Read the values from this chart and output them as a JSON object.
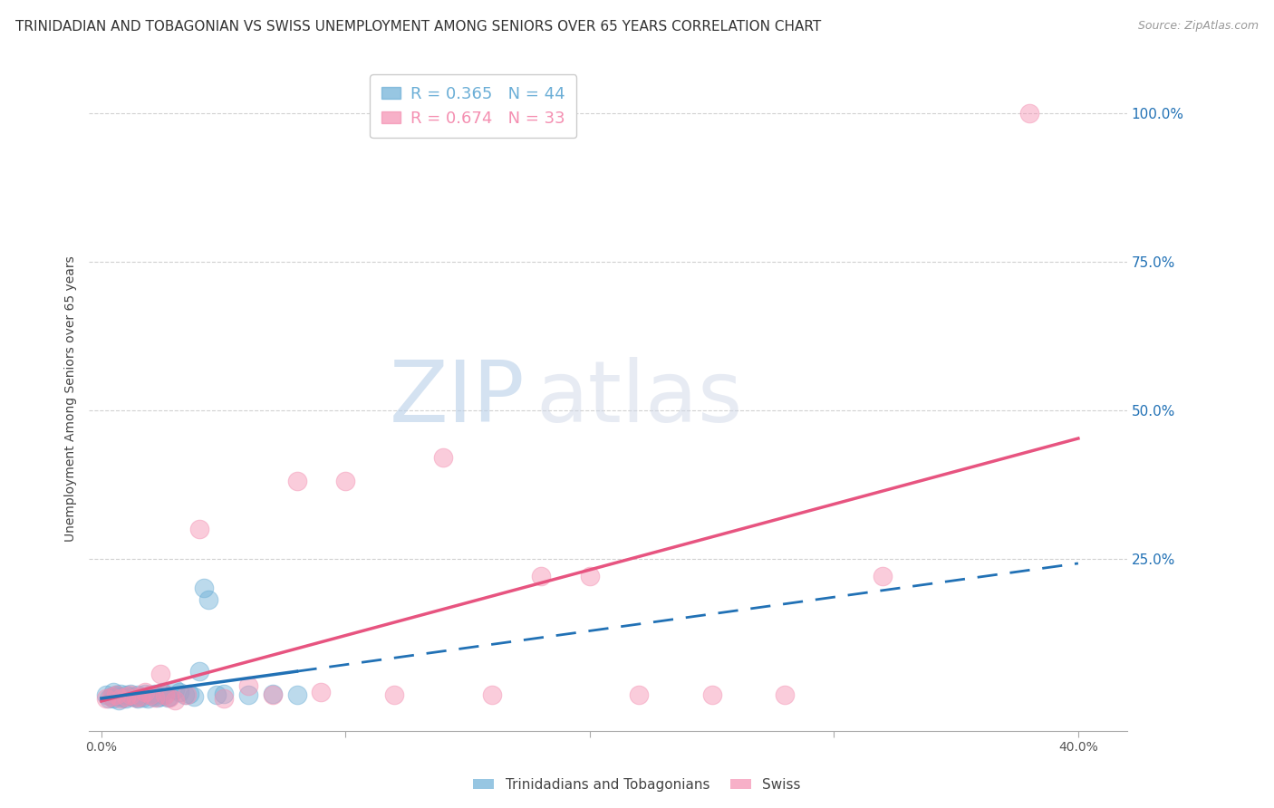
{
  "title": "TRINIDADIAN AND TOBAGONIAN VS SWISS UNEMPLOYMENT AMONG SENIORS OVER 65 YEARS CORRELATION CHART",
  "source": "Source: ZipAtlas.com",
  "ylabel": "Unemployment Among Seniors over 65 years",
  "ytick_labels": [
    "100.0%",
    "75.0%",
    "50.0%",
    "25.0%"
  ],
  "ytick_values": [
    1.0,
    0.75,
    0.5,
    0.25
  ],
  "xtick_positions": [
    0.0,
    0.1,
    0.2,
    0.3,
    0.4
  ],
  "xtick_labels": [
    "0.0%",
    "",
    "",
    "",
    "40.0%"
  ],
  "xlim": [
    -0.005,
    0.42
  ],
  "ylim": [
    -0.04,
    1.08
  ],
  "legend_items": [
    {
      "label": "R = 0.365   N = 44",
      "color": "#6baed6"
    },
    {
      "label": "R = 0.674   N = 33",
      "color": "#f48fb1"
    }
  ],
  "legend_labels_bottom": [
    "Trinidadians and Tobagonians",
    "Swiss"
  ],
  "legend_colors_bottom": [
    "#6baed6",
    "#f48fb1"
  ],
  "watermark_zip": "ZIP",
  "watermark_atlas": "atlas",
  "tt_points_x": [
    0.002,
    0.003,
    0.004,
    0.005,
    0.005,
    0.006,
    0.007,
    0.007,
    0.008,
    0.009,
    0.01,
    0.01,
    0.011,
    0.012,
    0.013,
    0.014,
    0.015,
    0.015,
    0.016,
    0.017,
    0.018,
    0.019,
    0.02,
    0.021,
    0.022,
    0.023,
    0.024,
    0.025,
    0.026,
    0.027,
    0.028,
    0.03,
    0.032,
    0.034,
    0.036,
    0.038,
    0.04,
    0.042,
    0.044,
    0.047,
    0.05,
    0.06,
    0.07,
    0.08
  ],
  "tt_points_y": [
    0.02,
    0.015,
    0.018,
    0.025,
    0.015,
    0.02,
    0.018,
    0.012,
    0.022,
    0.016,
    0.02,
    0.015,
    0.018,
    0.022,
    0.018,
    0.016,
    0.02,
    0.015,
    0.018,
    0.016,
    0.022,
    0.015,
    0.02,
    0.018,
    0.022,
    0.016,
    0.018,
    0.025,
    0.02,
    0.016,
    0.018,
    0.03,
    0.025,
    0.02,
    0.022,
    0.018,
    0.06,
    0.2,
    0.18,
    0.02,
    0.022,
    0.02,
    0.022,
    0.02
  ],
  "tt_color": "#6baed6",
  "tt_line_color": "#2171b5",
  "sw_points_x": [
    0.002,
    0.004,
    0.006,
    0.008,
    0.01,
    0.012,
    0.014,
    0.016,
    0.018,
    0.02,
    0.022,
    0.024,
    0.026,
    0.028,
    0.03,
    0.035,
    0.04,
    0.05,
    0.06,
    0.07,
    0.08,
    0.09,
    0.1,
    0.12,
    0.14,
    0.16,
    0.18,
    0.2,
    0.22,
    0.25,
    0.28,
    0.32,
    0.38
  ],
  "sw_points_y": [
    0.015,
    0.018,
    0.02,
    0.015,
    0.018,
    0.02,
    0.016,
    0.018,
    0.025,
    0.02,
    0.016,
    0.055,
    0.02,
    0.016,
    0.012,
    0.02,
    0.3,
    0.015,
    0.035,
    0.02,
    0.38,
    0.025,
    0.38,
    0.02,
    0.42,
    0.02,
    0.22,
    0.22,
    0.02,
    0.02,
    0.02,
    0.22,
    1.0
  ],
  "sw_color": "#f48fb1",
  "sw_line_color": "#e75480",
  "background_color": "#ffffff",
  "grid_color": "#cccccc",
  "title_fontsize": 11,
  "axis_label_fontsize": 10,
  "tick_fontsize": 10
}
